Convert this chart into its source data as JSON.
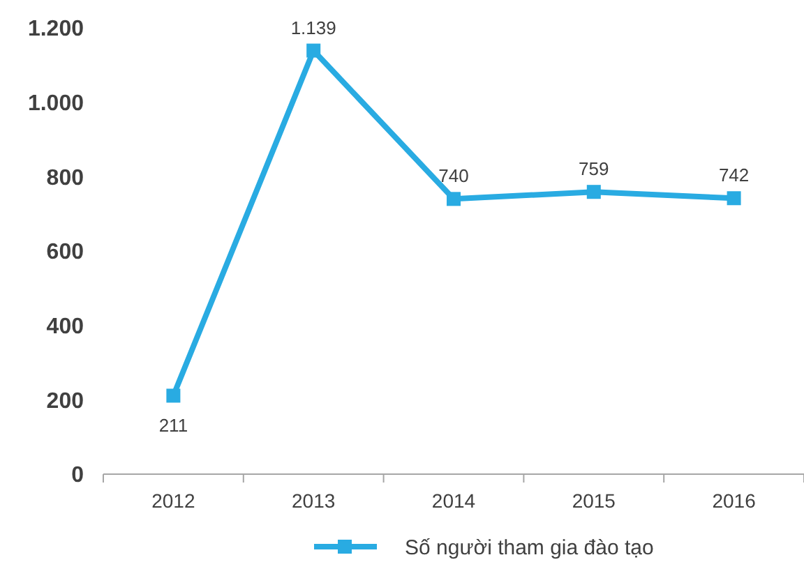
{
  "chart_data": {
    "type": "line",
    "categories": [
      "2012",
      "2013",
      "2014",
      "2015",
      "2016"
    ],
    "series": [
      {
        "name": "Số người tham gia đào tạo",
        "color": "#29abe2",
        "values": [
          211,
          1139,
          740,
          759,
          742
        ],
        "value_labels": [
          "211",
          "1.139",
          "740",
          "759",
          "742"
        ]
      }
    ],
    "ylim": [
      0,
      1200
    ],
    "yticks": [
      0,
      200,
      400,
      600,
      800,
      {
        "value": 1000,
        "label": "1.000"
      },
      {
        "value": 1200,
        "label": "1.200"
      }
    ],
    "marker": "square",
    "line_style": "solid",
    "legend": "bottom",
    "grid": false
  }
}
